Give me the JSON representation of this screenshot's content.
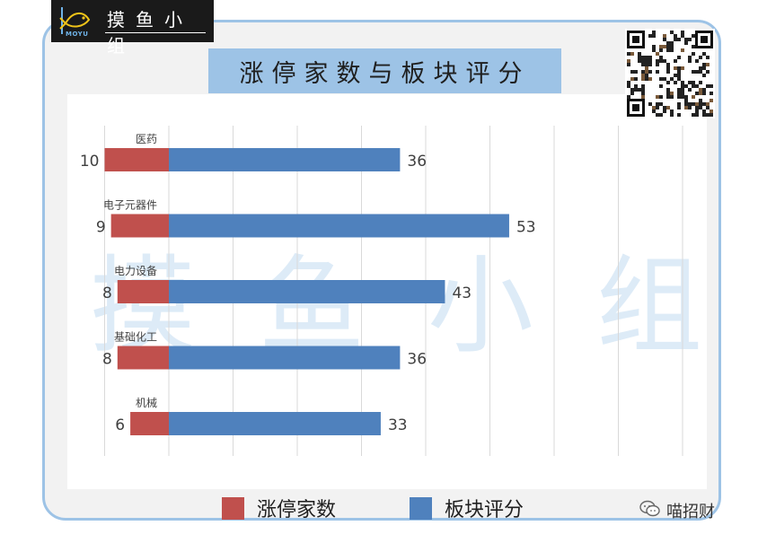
{
  "branding": {
    "logo_text": "摸鱼小组",
    "logo_subtext": "MOYU",
    "watermark": "摸鱼小组",
    "account_name": "喵招财",
    "qr_icon": "qr-code-icon",
    "wechat_icon": "wechat-icon"
  },
  "colors": {
    "limit_up": "#c0504d",
    "sector_score": "#4f81bd",
    "title_bg": "#9dc3e6",
    "frame": "#9dc3e6"
  },
  "chart_data": {
    "type": "bar",
    "orientation": "horizontal",
    "title": "涨停家数与板块评分",
    "categories": [
      "医药",
      "电子元器件",
      "电力设备",
      "基础化工",
      "机械"
    ],
    "series": [
      {
        "name": "涨停家数",
        "values": [
          10,
          9,
          8,
          8,
          6
        ],
        "color": "#c0504d",
        "direction": "left"
      },
      {
        "name": "板块评分",
        "values": [
          36,
          53,
          43,
          36,
          33
        ],
        "color": "#4f81bd",
        "direction": "right"
      }
    ],
    "grid": true,
    "legend_position": "bottom",
    "xlabel": "",
    "ylabel": ""
  }
}
